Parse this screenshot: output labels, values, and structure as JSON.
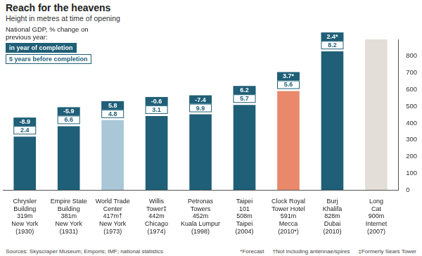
{
  "chart_data": {
    "type": "bar",
    "title": "Reach for the heavens",
    "subtitle": "Height in metres at time of opening",
    "categories": [
      "Chrysler Building",
      "Empire State Building",
      "World Trade Center",
      "Willis Tower‡",
      "Petronas Towers",
      "Taipei 101",
      "Clock Royal Tower Hotel",
      "Burj Khalifa",
      "Long Cat"
    ],
    "values": [
      319,
      381,
      417,
      442,
      452,
      508,
      591,
      828,
      900
    ],
    "value_labels": [
      "319m",
      "381m",
      "417m†",
      "442m",
      "452m",
      "508m",
      "591m",
      "828m",
      "900m"
    ],
    "locations": [
      "New York",
      "New York",
      "New York",
      "Chicago",
      "Kuala Lumpur",
      "Taipei",
      "Mecca",
      "Dubai",
      "Internet"
    ],
    "years": [
      "(1930)",
      "(1931)",
      "(1973)",
      "(1974)",
      "(1998)",
      "(2004)",
      "(2010*)",
      "(2010)",
      "(2007)"
    ],
    "colors": [
      "#1f5f77",
      "#1f5f77",
      "#a9c7d6",
      "#1f5f77",
      "#1f5f77",
      "#1f5f77",
      "#e9886b",
      "#1f5f77",
      "#e3ded7"
    ],
    "ylim": [
      0,
      900
    ],
    "yticks": [
      0,
      100,
      200,
      300,
      400,
      500,
      600,
      700,
      800
    ],
    "grid": false,
    "gdp": {
      "title": "National GDP, % change on previous year:",
      "series": [
        {
          "name": "in year of completion",
          "color": "#1f5f77",
          "values": [
            -8.9,
            -5.9,
            5.8,
            -0.6,
            -7.4,
            6.2,
            3.7,
            2.4,
            null
          ],
          "value_labels": [
            "-8.9",
            "-5.9",
            "5.8",
            "-0.6",
            "-7.4",
            "6.2",
            "3.7*",
            "2.4*",
            null
          ]
        },
        {
          "name": "5 years before completion",
          "color": "#ffffff",
          "values": [
            2.4,
            6.6,
            4.8,
            3.1,
            9.9,
            5.7,
            5.6,
            8.2,
            null
          ]
        }
      ]
    },
    "source": "Sources: Skyscraper Museum; Emporis; IMF; national statistics",
    "notes": [
      "*Forecast",
      "†Not including antennae/spires",
      "‡Formerly Sears Tower"
    ]
  }
}
